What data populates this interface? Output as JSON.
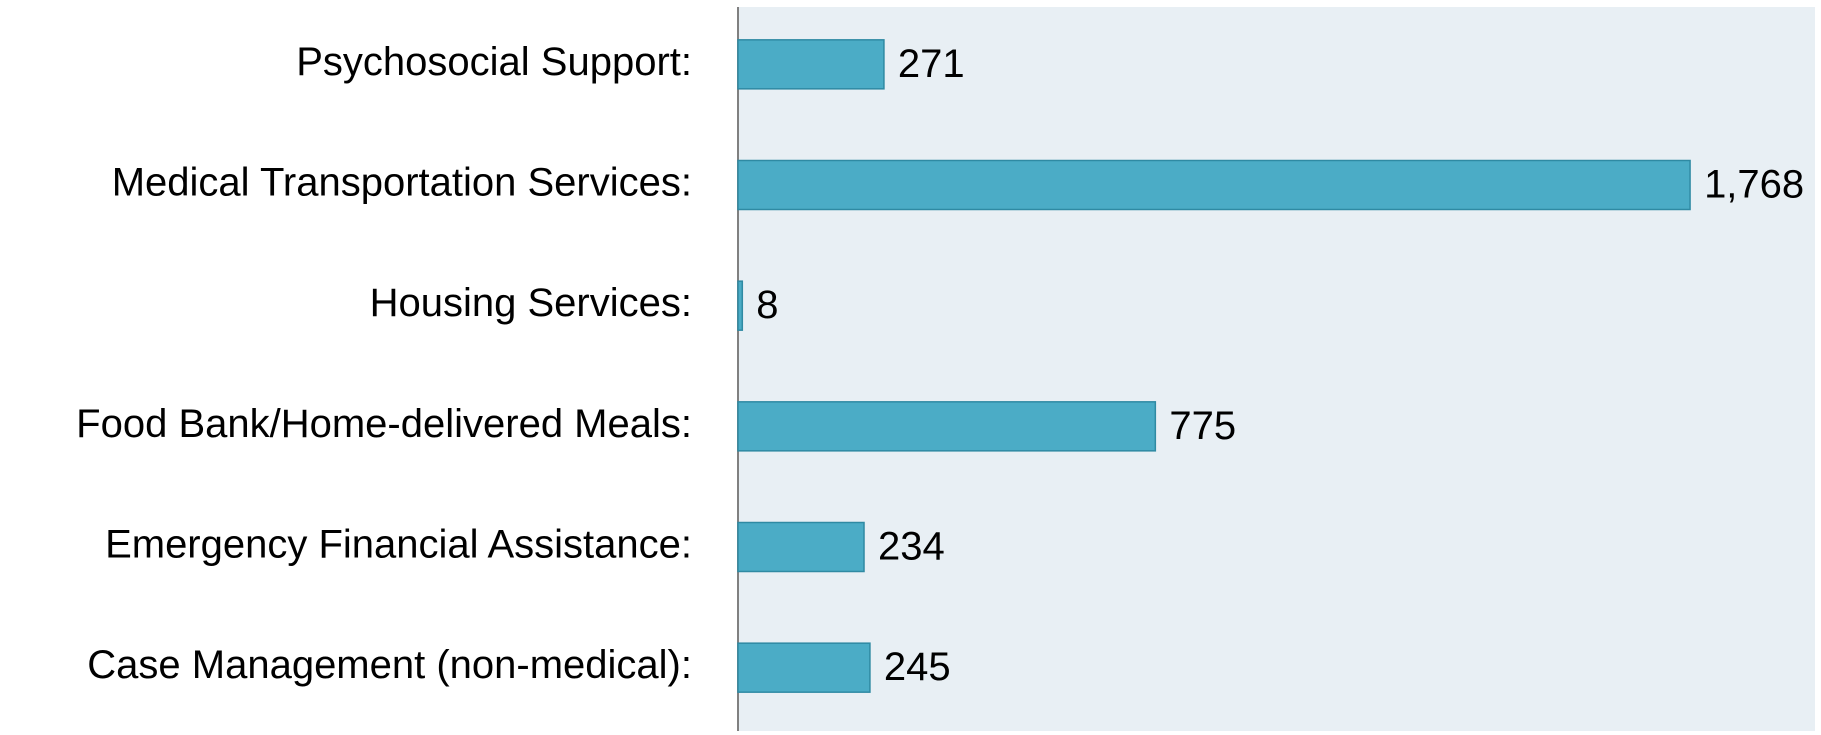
{
  "chart_data": {
    "type": "hbar",
    "categories": [
      "Psychosocial Support:",
      "Medical Transportation Services:",
      "Housing Services:",
      "Food Bank/Home-delivered Meals:",
      "Emergency Financial Assistance:",
      "Case Management (non-medical):"
    ],
    "values": [
      271,
      1768,
      8,
      775,
      234,
      245
    ],
    "value_labels": [
      "271",
      "1,768",
      "8",
      "775",
      "234",
      "245"
    ],
    "color": "#4bacc6",
    "xlim": [
      0,
      2000
    ]
  }
}
